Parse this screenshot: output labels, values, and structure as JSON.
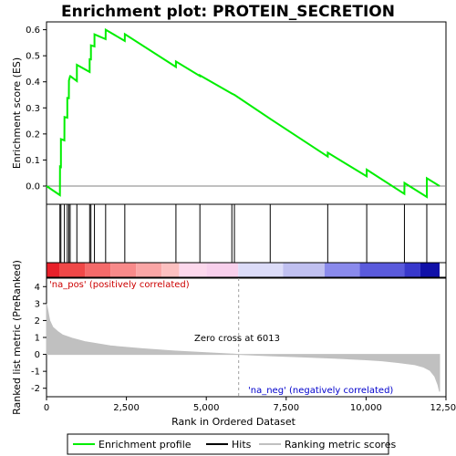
{
  "chart_data": {
    "type": "line",
    "title": "Enrichment plot: PROTEIN_SECRETION",
    "x_axis": {
      "label": "Rank in Ordered Dataset",
      "range": [
        0,
        12500
      ],
      "ticks": [
        0,
        2500,
        5000,
        7500,
        10000,
        12500
      ],
      "tick_labels": [
        "0",
        "2,500",
        "5,000",
        "7,500",
        "10,000",
        "12,500"
      ]
    },
    "es_panel": {
      "ylabel": "Enrichment score (ES)",
      "ylim": [
        -0.07,
        0.63
      ],
      "ticks": [
        0.0,
        0.1,
        0.2,
        0.3,
        0.4,
        0.5,
        0.6
      ],
      "tick_labels": [
        "0.0",
        "0.1",
        "0.2",
        "0.3",
        "0.4",
        "0.5",
        "0.6"
      ],
      "line_color": "#00ee00"
    },
    "hits": [
      420,
      450,
      560,
      650,
      700,
      740,
      950,
      1350,
      1390,
      1500,
      1850,
      2450,
      4050,
      4800,
      5800,
      5880,
      7000,
      8800,
      10020,
      11200,
      11900
    ],
    "es_curve": {
      "x": [
        0,
        420,
        421,
        450,
        451,
        560,
        561,
        650,
        651,
        700,
        701,
        740,
        741,
        950,
        951,
        1350,
        1351,
        1390,
        1391,
        1500,
        1501,
        1850,
        1851,
        2450,
        2451,
        4050,
        4051,
        4800,
        4801,
        5800,
        5801,
        5880,
        5881,
        7000,
        7001,
        8800,
        8801,
        10020,
        10021,
        11200,
        11201,
        11900,
        11901,
        12300
      ],
      "y": [
        0.0,
        -0.035,
        0.075,
        0.073,
        0.18,
        0.175,
        0.265,
        0.262,
        0.338,
        0.337,
        0.405,
        0.422,
        0.422,
        0.403,
        0.465,
        0.438,
        0.487,
        0.486,
        0.54,
        0.536,
        0.582,
        0.564,
        0.6,
        0.557,
        0.583,
        0.457,
        0.478,
        0.422,
        0.425,
        0.355,
        0.355,
        0.35,
        0.35,
        0.258,
        0.258,
        0.113,
        0.128,
        0.037,
        0.063,
        -0.03,
        0.012,
        -0.042,
        0.03,
        0.0
      ]
    },
    "ranked_metric_panel": {
      "ylabel": "Ranked list metric (PreRanked)",
      "ylim": [
        -2.5,
        4.5
      ],
      "ticks": [
        -2,
        -1,
        0,
        1,
        2,
        3,
        4
      ],
      "tick_labels": [
        "-2",
        "-1",
        "0",
        "1",
        "2",
        "3",
        "4"
      ],
      "fill_color": "#c0c0c0",
      "profile": {
        "x": [
          0,
          100,
          200,
          350,
          500,
          800,
          1200,
          2000,
          3000,
          4000,
          5000,
          6013,
          7000,
          8000,
          9000,
          10000,
          10500,
          11000,
          11500,
          11800,
          12000,
          12150,
          12250,
          12300
        ],
        "y": [
          3.0,
          2.0,
          1.6,
          1.35,
          1.15,
          0.95,
          0.75,
          0.5,
          0.33,
          0.2,
          0.1,
          0.0,
          -0.08,
          -0.15,
          -0.23,
          -0.32,
          -0.38,
          -0.48,
          -0.6,
          -0.75,
          -0.95,
          -1.3,
          -1.8,
          -2.2
        ]
      }
    },
    "zero_cross": 6013,
    "annotations": {
      "pos_label": "'na_pos' (positively correlated)",
      "neg_label": "'na_neg' (negatively correlated)",
      "zero_label": "Zero cross at 6013"
    },
    "legend": [
      {
        "label": "Enrichment profile",
        "color": "#00ee00"
      },
      {
        "label": "Hits",
        "color": "#000000"
      },
      {
        "label": "Ranking metric scores",
        "color": "#c0c0c0"
      }
    ],
    "colorbar": {
      "segments": [
        {
          "to": 400,
          "color": "#e8202a"
        },
        {
          "to": 1200,
          "color": "#f04848"
        },
        {
          "to": 2000,
          "color": "#f46a6a"
        },
        {
          "to": 2800,
          "color": "#f88a8a"
        },
        {
          "to": 3600,
          "color": "#faa6a6"
        },
        {
          "to": 4150,
          "color": "#fcc0c0"
        },
        {
          "to": 5000,
          "color": "#fcd8ec"
        },
        {
          "to": 6000,
          "color": "#f8d0ec"
        },
        {
          "to": 7400,
          "color": "#dcdcf8"
        },
        {
          "to": 8700,
          "color": "#c0c0f0"
        },
        {
          "to": 9800,
          "color": "#8a8aec"
        },
        {
          "to": 11200,
          "color": "#5a5adc"
        },
        {
          "to": 11700,
          "color": "#3838cc"
        },
        {
          "to": 12300,
          "color": "#1010a8"
        }
      ]
    }
  }
}
